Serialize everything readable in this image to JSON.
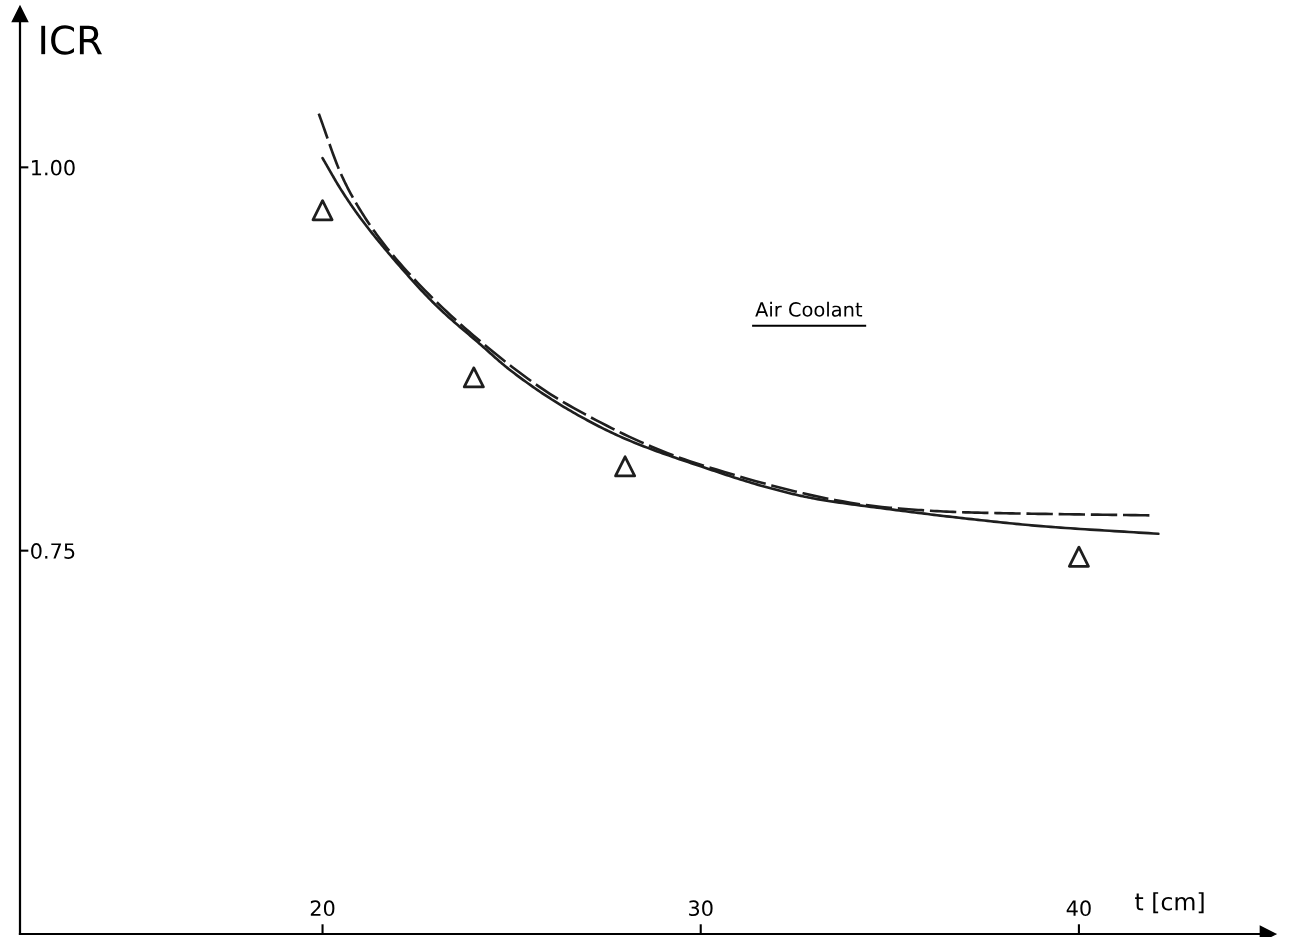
{
  "chart_data": {
    "type": "line",
    "xlabel": "t [cm]",
    "ylabel": "ICR",
    "annotations": [
      "Air Coolant"
    ],
    "xlim": [
      12,
      45
    ],
    "ylim": [
      0.5,
      1.1
    ],
    "xticks": [
      20,
      30,
      40
    ],
    "yticks": [
      0.75,
      {
        "value": 1.0,
        "label": "1.00"
      }
    ],
    "series": [
      {
        "color": "#1e1e1e",
        "line_style": "solid",
        "x": [
          20,
          20.5,
          21,
          21.85,
          23,
          24.15,
          25,
          26.5,
          28,
          30,
          31.8,
          33,
          35,
          37,
          39,
          42.1
        ],
        "values": [
          1.006,
          0.985,
          0.967,
          0.941,
          0.91,
          0.885,
          0.867,
          0.842,
          0.823,
          0.805,
          0.791,
          0.784,
          0.777,
          0.771,
          0.766,
          0.761
        ]
      },
      {
        "color": "#1e1e1e",
        "line_style": "dashed",
        "x": [
          19.9,
          20.5,
          21,
          21.85,
          24.15,
          26.5,
          30,
          35,
          37,
          39,
          42.0
        ],
        "values": [
          1.035,
          0.995,
          0.972,
          0.943,
          0.887,
          0.845,
          0.806,
          0.778,
          0.775,
          0.774,
          0.773
        ]
      },
      {
        "type": "scatter",
        "color": "#1e1e1e",
        "marker": "triangle",
        "x": [
          20,
          24,
          28,
          40
        ],
        "values": [
          0.972,
          0.863,
          0.805,
          0.746
        ]
      }
    ]
  }
}
